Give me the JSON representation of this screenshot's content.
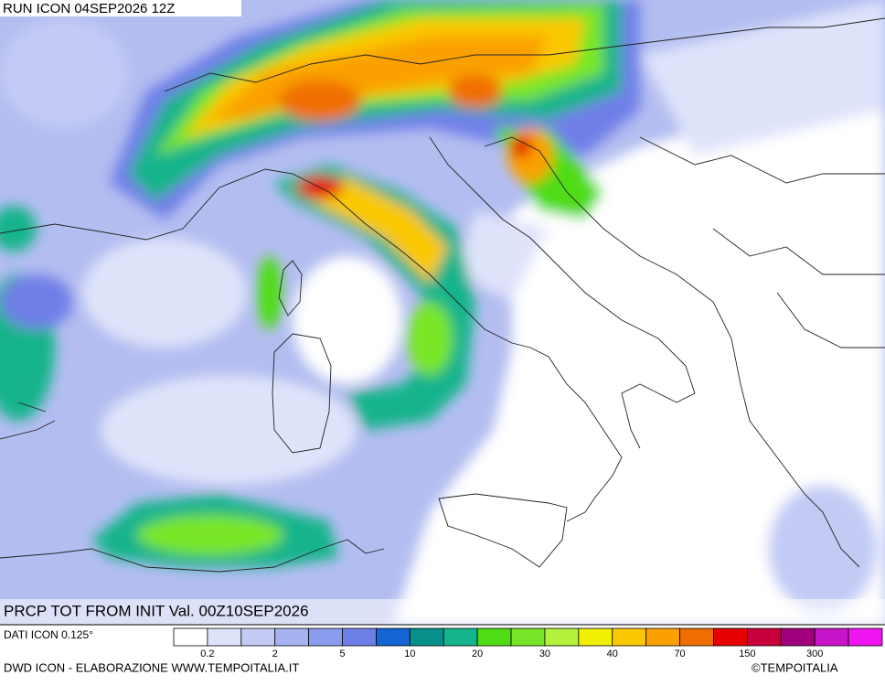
{
  "header": {
    "run": "RUN ICON 04SEP2026 12Z"
  },
  "map": {
    "title": "PRCP TOT FROM INIT Val. 00Z10SEP2026"
  },
  "legend": {
    "source": "DATI ICON 0.125°",
    "colors": [
      "#ffffff",
      "#dfe3fa",
      "#c3cbf5",
      "#a7b3f1",
      "#8b9bed",
      "#6f7fe8",
      "#1464d2",
      "#08908c",
      "#14b48c",
      "#50dc14",
      "#78e628",
      "#b4f03c",
      "#f0f000",
      "#fac800",
      "#faa000",
      "#f06e00",
      "#e60000",
      "#c8003c",
      "#a0007c",
      "#c814c8",
      "#f014f0"
    ],
    "ticks": [
      0.2,
      2,
      5,
      10,
      20,
      30,
      40,
      70,
      150,
      300
    ]
  },
  "footer": {
    "credit": "DWD ICON - ELABORAZIONE WWW.TEMPOITALIA.IT",
    "copyright": "©TEMPOITALIA"
  }
}
